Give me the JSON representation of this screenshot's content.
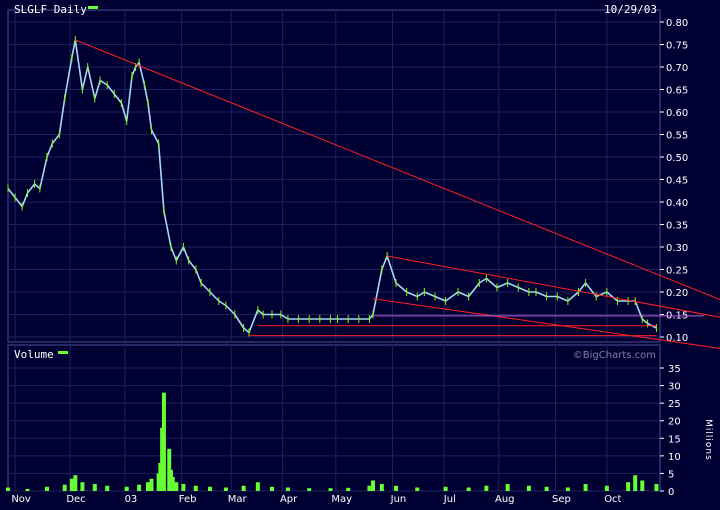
{
  "header": {
    "ticker_label": "SLGLF Daily",
    "date": "10/29/03"
  },
  "volume_panel": {
    "label": "Volume",
    "unit": "Millions"
  },
  "watermark": "©BigCharts.com",
  "colors": {
    "background": "#000033",
    "grid": "#1c2260",
    "price": "#a8d8f0",
    "price_up_wick": "#7cfc00",
    "volume": "#66ff33",
    "trendline": "#ff2020",
    "support": "#c060e0",
    "legend_swatch": "#66ff33"
  },
  "chart_data": [
    {
      "type": "line",
      "title": "SLGLF Daily",
      "series": [
        {
          "name": "SLGLF",
          "x": [
            "2002-10-28",
            "2002-11-01",
            "2002-11-05",
            "2002-11-08",
            "2002-11-12",
            "2002-11-15",
            "2002-11-19",
            "2002-11-22",
            "2002-11-26",
            "2002-11-29",
            "2002-12-03",
            "2002-12-05",
            "2002-12-09",
            "2002-12-12",
            "2002-12-16",
            "2002-12-19",
            "2002-12-23",
            "2002-12-27",
            "2002-12-31",
            "2003-01-03",
            "2003-01-06",
            "2003-01-08",
            "2003-01-10",
            "2003-01-13",
            "2003-01-15",
            "2003-01-17",
            "2003-01-21",
            "2003-01-24",
            "2003-01-28",
            "2003-01-31",
            "2003-02-04",
            "2003-02-07",
            "2003-02-11",
            "2003-02-14",
            "2003-02-19",
            "2003-02-24",
            "2003-02-28",
            "2003-03-05",
            "2003-03-10",
            "2003-03-13",
            "2003-03-18",
            "2003-03-21",
            "2003-03-26",
            "2003-03-31",
            "2003-04-04",
            "2003-04-10",
            "2003-04-16",
            "2003-04-22",
            "2003-04-28",
            "2003-05-02",
            "2003-05-08",
            "2003-05-14",
            "2003-05-20",
            "2003-05-22",
            "2003-05-27",
            "2003-05-30",
            "2003-06-04",
            "2003-06-10",
            "2003-06-16",
            "2003-06-20",
            "2003-06-26",
            "2003-07-02",
            "2003-07-09",
            "2003-07-15",
            "2003-07-21",
            "2003-07-25",
            "2003-07-31",
            "2003-08-06",
            "2003-08-12",
            "2003-08-18",
            "2003-08-22",
            "2003-08-28",
            "2003-09-03",
            "2003-09-09",
            "2003-09-15",
            "2003-09-19",
            "2003-09-25",
            "2003-10-01",
            "2003-10-07",
            "2003-10-13",
            "2003-10-17",
            "2003-10-21",
            "2003-10-24",
            "2003-10-29"
          ],
          "values": [
            0.43,
            0.41,
            0.39,
            0.42,
            0.44,
            0.43,
            0.5,
            0.53,
            0.55,
            0.63,
            0.72,
            0.76,
            0.65,
            0.7,
            0.63,
            0.67,
            0.66,
            0.64,
            0.62,
            0.58,
            0.68,
            0.7,
            0.71,
            0.66,
            0.62,
            0.56,
            0.53,
            0.38,
            0.3,
            0.27,
            0.3,
            0.27,
            0.25,
            0.22,
            0.2,
            0.18,
            0.17,
            0.15,
            0.12,
            0.11,
            0.16,
            0.15,
            0.15,
            0.15,
            0.14,
            0.14,
            0.14,
            0.14,
            0.14,
            0.14,
            0.14,
            0.14,
            0.14,
            0.15,
            0.25,
            0.28,
            0.22,
            0.2,
            0.19,
            0.2,
            0.19,
            0.18,
            0.2,
            0.19,
            0.22,
            0.23,
            0.21,
            0.22,
            0.21,
            0.2,
            0.2,
            0.19,
            0.19,
            0.18,
            0.2,
            0.22,
            0.19,
            0.2,
            0.18,
            0.18,
            0.18,
            0.14,
            0.13,
            0.12
          ]
        }
      ],
      "x_tick_labels": [
        "Nov",
        "Dec",
        "03",
        "Feb",
        "Mar",
        "Apr",
        "May",
        "Jun",
        "Jul",
        "Aug",
        "Sep",
        "Oct"
      ],
      "y_tick_labels": [
        "0.10",
        "0.15",
        "0.20",
        "0.25",
        "0.30",
        "0.35",
        "0.40",
        "0.45",
        "0.50",
        "0.55",
        "0.60",
        "0.65",
        "0.70",
        "0.75",
        "0.80"
      ],
      "ylim": [
        0.1,
        0.8
      ],
      "y_axis_side": "right",
      "grid": true,
      "overlays": [
        {
          "name": "downtrend-long",
          "x": [
            "2002-12-05",
            "2003-10-29"
          ],
          "y": [
            0.76,
            0.24
          ]
        },
        {
          "name": "channel-upper",
          "x": [
            "2003-05-30",
            "2003-10-29"
          ],
          "y": [
            0.28,
            0.17
          ]
        },
        {
          "name": "channel-lower",
          "x": [
            "2003-05-22",
            "2003-10-29"
          ],
          "y": [
            0.185,
            0.095
          ]
        },
        {
          "name": "support-line",
          "x": [
            "2003-03-18",
            "2003-10-29"
          ],
          "y": [
            0.125,
            0.125
          ]
        },
        {
          "name": "resistance-line",
          "x": [
            "2003-03-13",
            "2003-10-29"
          ],
          "y": [
            0.103,
            0.103
          ]
        },
        {
          "name": "mid-line",
          "x": [
            "2003-05-22",
            "2003-10-29"
          ],
          "y": [
            0.147,
            0.147
          ]
        }
      ]
    },
    {
      "type": "bar",
      "title": "Volume",
      "ylabel": "Millions",
      "ylim": [
        0,
        35
      ],
      "y_tick_labels": [
        "0",
        "5",
        "10",
        "15",
        "20",
        "25",
        "30",
        "35"
      ],
      "series": [
        {
          "name": "Volume",
          "x": [
            "2002-10-28",
            "2002-11-08",
            "2002-11-19",
            "2002-11-29",
            "2002-12-03",
            "2002-12-05",
            "2002-12-09",
            "2002-12-16",
            "2002-12-23",
            "2003-01-03",
            "2003-01-10",
            "2003-01-15",
            "2003-01-17",
            "2003-01-21",
            "2003-01-22",
            "2003-01-23",
            "2003-01-24",
            "2003-01-27",
            "2003-01-28",
            "2003-01-29",
            "2003-01-31",
            "2003-02-04",
            "2003-02-11",
            "2003-02-19",
            "2003-02-28",
            "2003-03-10",
            "2003-03-18",
            "2003-03-26",
            "2003-04-04",
            "2003-04-16",
            "2003-04-28",
            "2003-05-08",
            "2003-05-20",
            "2003-05-22",
            "2003-05-27",
            "2003-06-04",
            "2003-06-16",
            "2003-07-02",
            "2003-07-15",
            "2003-07-25",
            "2003-08-06",
            "2003-08-18",
            "2003-08-28",
            "2003-09-09",
            "2003-09-19",
            "2003-10-01",
            "2003-10-13",
            "2003-10-17",
            "2003-10-21",
            "2003-10-29"
          ],
          "values": [
            1.0,
            0.6,
            1.2,
            1.8,
            3.5,
            4.5,
            2.5,
            2.0,
            1.5,
            1.2,
            1.8,
            2.5,
            3.5,
            5.0,
            8.0,
            18.0,
            28.0,
            12.0,
            6.0,
            4.0,
            2.5,
            2.0,
            1.5,
            1.2,
            1.0,
            1.5,
            2.5,
            1.2,
            1.0,
            0.8,
            0.8,
            0.9,
            1.5,
            3.0,
            2.0,
            1.5,
            1.0,
            1.2,
            1.0,
            1.5,
            2.0,
            1.5,
            1.2,
            1.0,
            2.0,
            1.5,
            2.5,
            4.5,
            3.0,
            2.0
          ]
        }
      ],
      "x_tick_labels": [
        "Nov",
        "Dec",
        "03",
        "Feb",
        "Mar",
        "Apr",
        "May",
        "Jun",
        "Jul",
        "Aug",
        "Sep",
        "Oct"
      ],
      "grid": true
    }
  ]
}
